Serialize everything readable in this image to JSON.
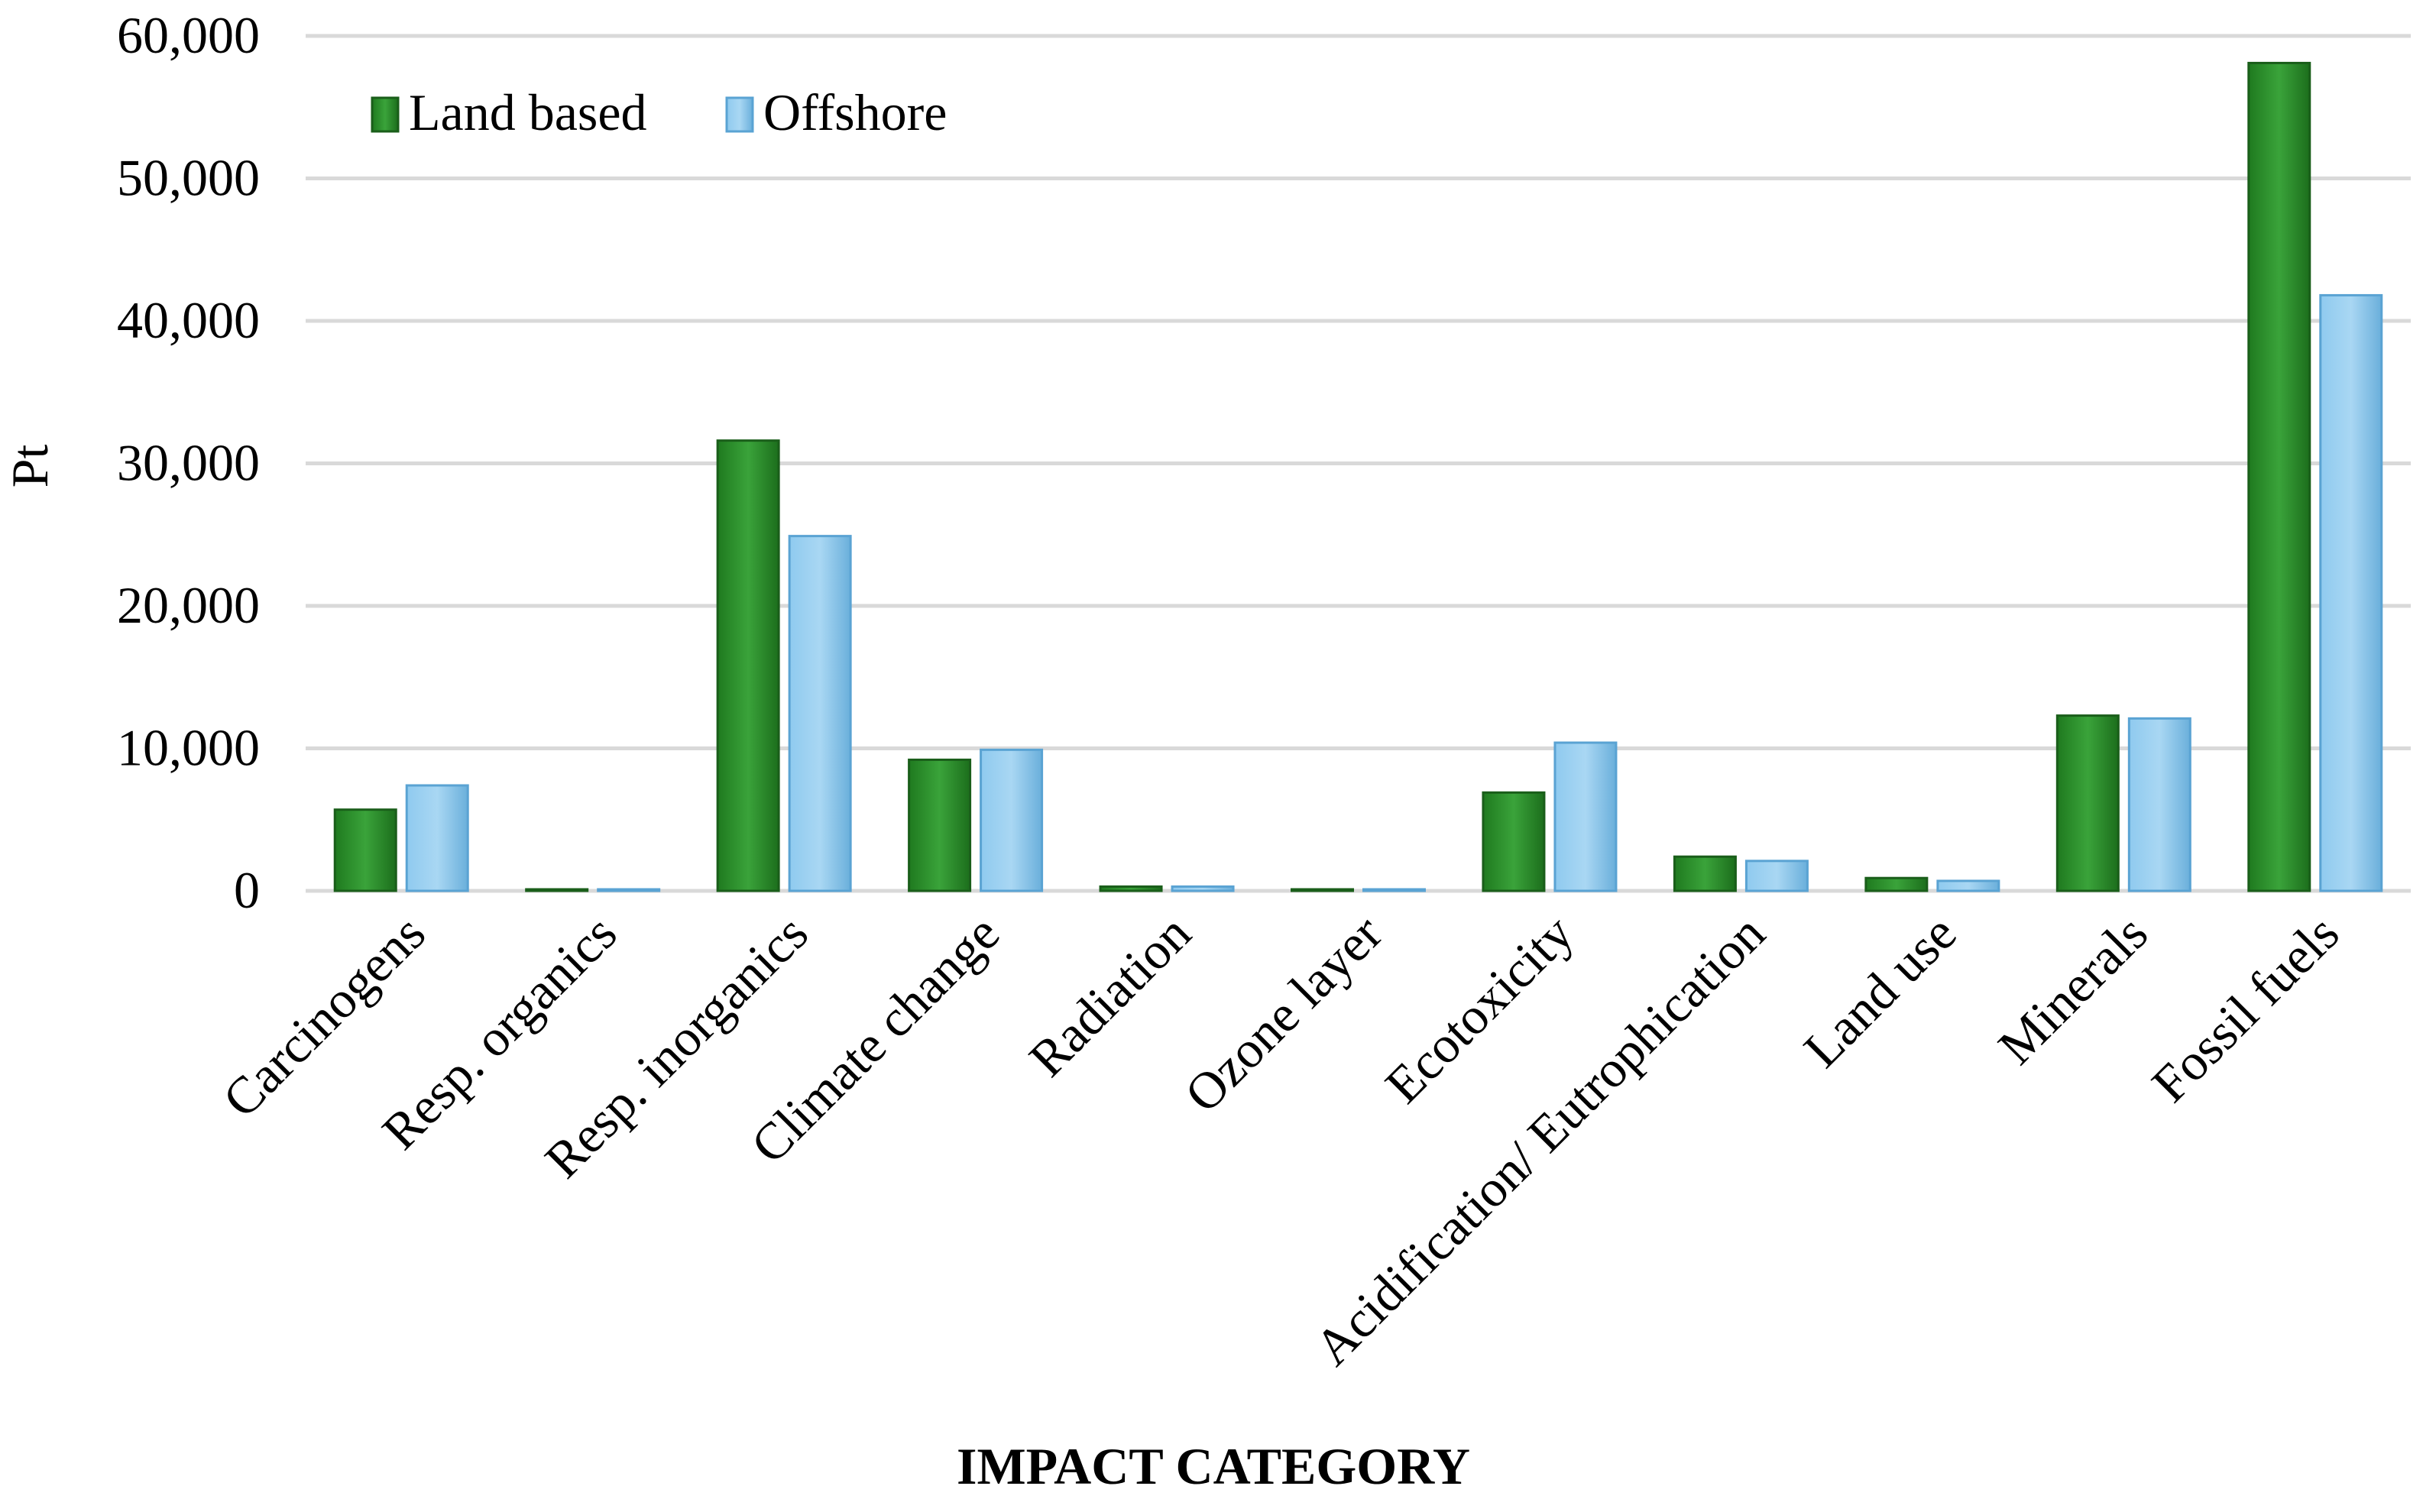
{
  "chart_data": {
    "type": "bar",
    "title": "",
    "xlabel": "IMPACT CATEGORY",
    "ylabel": "Pt",
    "ylim": [
      0,
      60000
    ],
    "yticks": [
      0,
      10000,
      20000,
      30000,
      40000,
      50000,
      60000
    ],
    "ytick_labels": [
      "0",
      "10,000",
      "20,000",
      "30,000",
      "40,000",
      "50,000",
      "60,000"
    ],
    "grid": true,
    "legend_position": "top-left",
    "categories": [
      "Carcinogens",
      "Resp. organics",
      "Resp. inorganics",
      "Climate change",
      "Radiation",
      "Ozone layer",
      "Ecotoxicity",
      "Acidification/ Eutrophication",
      "Land use",
      "Minerals",
      "Fossil fuels"
    ],
    "series": [
      {
        "name": "Land based",
        "color": "#2e8b2e",
        "values": [
          5700,
          50,
          31600,
          9200,
          300,
          30,
          6900,
          2400,
          900,
          12300,
          58100
        ]
      },
      {
        "name": "Offshore",
        "color": "#7cbde6",
        "values": [
          7400,
          50,
          24900,
          9900,
          300,
          30,
          10400,
          2100,
          700,
          12100,
          41800
        ]
      }
    ]
  }
}
